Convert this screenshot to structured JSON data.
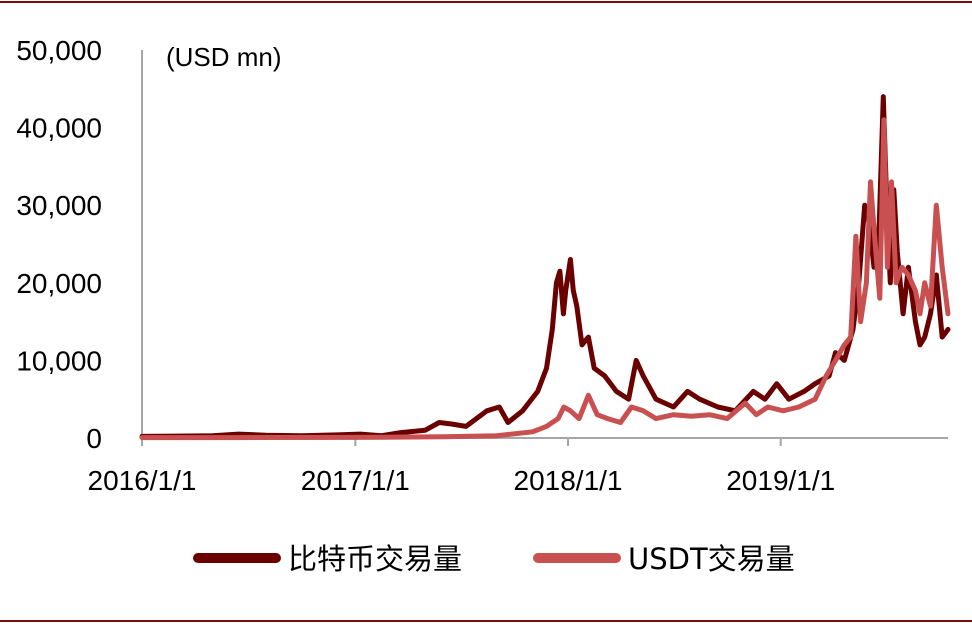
{
  "chart_data": {
    "type": "line",
    "unit_label": "(USD mn)",
    "ylim": [
      0,
      50000
    ],
    "y_ticks": [
      0,
      10000,
      20000,
      30000,
      40000,
      50000
    ],
    "y_tick_labels": [
      "0",
      "10,000",
      "20,000",
      "30,000",
      "40,000",
      "50,000"
    ],
    "x_range": [
      "2016-01-01",
      "2019-10-15"
    ],
    "x_ticks": [
      "2016-01-01",
      "2017-01-01",
      "2018-01-01",
      "2019-01-01"
    ],
    "x_tick_labels": [
      "2016/1/1",
      "2017/1/1",
      "2018/1/1",
      "2019/1/1"
    ],
    "grid": false,
    "legend_position": "bottom",
    "colors": {
      "frame": "#7a0a0a",
      "axis": "#a6a6a6",
      "series_btc": "#6b0000",
      "series_usdt": "#c95050"
    },
    "series": [
      {
        "name": "比特币交易量",
        "color": "#6b0000",
        "points": [
          [
            "2016-01-01",
            200
          ],
          [
            "2016-03-01",
            250
          ],
          [
            "2016-05-01",
            300
          ],
          [
            "2016-06-15",
            500
          ],
          [
            "2016-08-01",
            350
          ],
          [
            "2016-10-01",
            300
          ],
          [
            "2016-12-01",
            400
          ],
          [
            "2017-01-10",
            500
          ],
          [
            "2017-02-15",
            300
          ],
          [
            "2017-03-20",
            700
          ],
          [
            "2017-05-01",
            1000
          ],
          [
            "2017-05-25",
            2000
          ],
          [
            "2017-06-15",
            1800
          ],
          [
            "2017-07-10",
            1500
          ],
          [
            "2017-08-15",
            3500
          ],
          [
            "2017-09-05",
            4000
          ],
          [
            "2017-09-20",
            2000
          ],
          [
            "2017-10-15",
            3500
          ],
          [
            "2017-11-10",
            6000
          ],
          [
            "2017-11-25",
            9000
          ],
          [
            "2017-12-05",
            14000
          ],
          [
            "2017-12-12",
            20000
          ],
          [
            "2017-12-18",
            21500
          ],
          [
            "2017-12-24",
            16000
          ],
          [
            "2017-12-28",
            19000
          ],
          [
            "2018-01-05",
            23000
          ],
          [
            "2018-01-10",
            19000
          ],
          [
            "2018-01-16",
            17000
          ],
          [
            "2018-01-25",
            12000
          ],
          [
            "2018-02-05",
            13000
          ],
          [
            "2018-02-15",
            9000
          ],
          [
            "2018-03-05",
            8000
          ],
          [
            "2018-03-25",
            6000
          ],
          [
            "2018-04-15",
            5000
          ],
          [
            "2018-04-28",
            10000
          ],
          [
            "2018-05-10",
            8000
          ],
          [
            "2018-06-01",
            5000
          ],
          [
            "2018-07-01",
            4000
          ],
          [
            "2018-07-25",
            6000
          ],
          [
            "2018-08-15",
            5000
          ],
          [
            "2018-09-15",
            4000
          ],
          [
            "2018-10-15",
            3500
          ],
          [
            "2018-11-15",
            6000
          ],
          [
            "2018-12-05",
            5000
          ],
          [
            "2018-12-25",
            7000
          ],
          [
            "2019-01-15",
            5000
          ],
          [
            "2019-02-10",
            6000
          ],
          [
            "2019-03-01",
            7000
          ],
          [
            "2019-03-25",
            8000
          ],
          [
            "2019-04-05",
            11000
          ],
          [
            "2019-04-20",
            10000
          ],
          [
            "2019-05-05",
            14000
          ],
          [
            "2019-05-15",
            20000
          ],
          [
            "2019-05-25",
            30000
          ],
          [
            "2019-06-01",
            28000
          ],
          [
            "2019-06-10",
            22000
          ],
          [
            "2019-06-18",
            25000
          ],
          [
            "2019-06-26",
            44000
          ],
          [
            "2019-07-02",
            30000
          ],
          [
            "2019-07-08",
            20000
          ],
          [
            "2019-07-14",
            32000
          ],
          [
            "2019-07-20",
            24000
          ],
          [
            "2019-07-30",
            16000
          ],
          [
            "2019-08-08",
            22000
          ],
          [
            "2019-08-20",
            15000
          ],
          [
            "2019-08-28",
            12000
          ],
          [
            "2019-09-05",
            13000
          ],
          [
            "2019-09-15",
            16000
          ],
          [
            "2019-09-25",
            21000
          ],
          [
            "2019-10-05",
            13000
          ],
          [
            "2019-10-15",
            14000
          ]
        ]
      },
      {
        "name": "USDT交易量",
        "color": "#c95050",
        "points": [
          [
            "2016-01-01",
            50
          ],
          [
            "2016-06-01",
            50
          ],
          [
            "2017-01-01",
            80
          ],
          [
            "2017-06-01",
            150
          ],
          [
            "2017-09-01",
            300
          ],
          [
            "2017-11-01",
            800
          ],
          [
            "2017-11-25",
            1500
          ],
          [
            "2017-12-15",
            2500
          ],
          [
            "2017-12-25",
            4000
          ],
          [
            "2018-01-05",
            3500
          ],
          [
            "2018-01-20",
            2500
          ],
          [
            "2018-02-05",
            5500
          ],
          [
            "2018-02-20",
            3000
          ],
          [
            "2018-03-10",
            2500
          ],
          [
            "2018-04-01",
            2000
          ],
          [
            "2018-04-20",
            4000
          ],
          [
            "2018-05-10",
            3500
          ],
          [
            "2018-06-01",
            2500
          ],
          [
            "2018-07-01",
            3000
          ],
          [
            "2018-08-01",
            2800
          ],
          [
            "2018-09-01",
            3000
          ],
          [
            "2018-10-01",
            2500
          ],
          [
            "2018-11-01",
            4500
          ],
          [
            "2018-11-20",
            3000
          ],
          [
            "2018-12-10",
            4000
          ],
          [
            "2019-01-05",
            3500
          ],
          [
            "2019-02-01",
            4000
          ],
          [
            "2019-03-01",
            5000
          ],
          [
            "2019-03-20",
            8000
          ],
          [
            "2019-04-05",
            10000
          ],
          [
            "2019-04-20",
            12000
          ],
          [
            "2019-05-01",
            13000
          ],
          [
            "2019-05-10",
            26000
          ],
          [
            "2019-05-18",
            15000
          ],
          [
            "2019-05-28",
            20000
          ],
          [
            "2019-06-04",
            33000
          ],
          [
            "2019-06-12",
            25000
          ],
          [
            "2019-06-20",
            18000
          ],
          [
            "2019-06-27",
            41000
          ],
          [
            "2019-07-03",
            22000
          ],
          [
            "2019-07-10",
            33000
          ],
          [
            "2019-07-18",
            20000
          ],
          [
            "2019-07-28",
            22000
          ],
          [
            "2019-08-08",
            21000
          ],
          [
            "2019-08-20",
            19000
          ],
          [
            "2019-08-28",
            16000
          ],
          [
            "2019-09-05",
            20000
          ],
          [
            "2019-09-15",
            17000
          ],
          [
            "2019-09-25",
            30000
          ],
          [
            "2019-10-05",
            22000
          ],
          [
            "2019-10-15",
            16000
          ]
        ]
      }
    ]
  }
}
